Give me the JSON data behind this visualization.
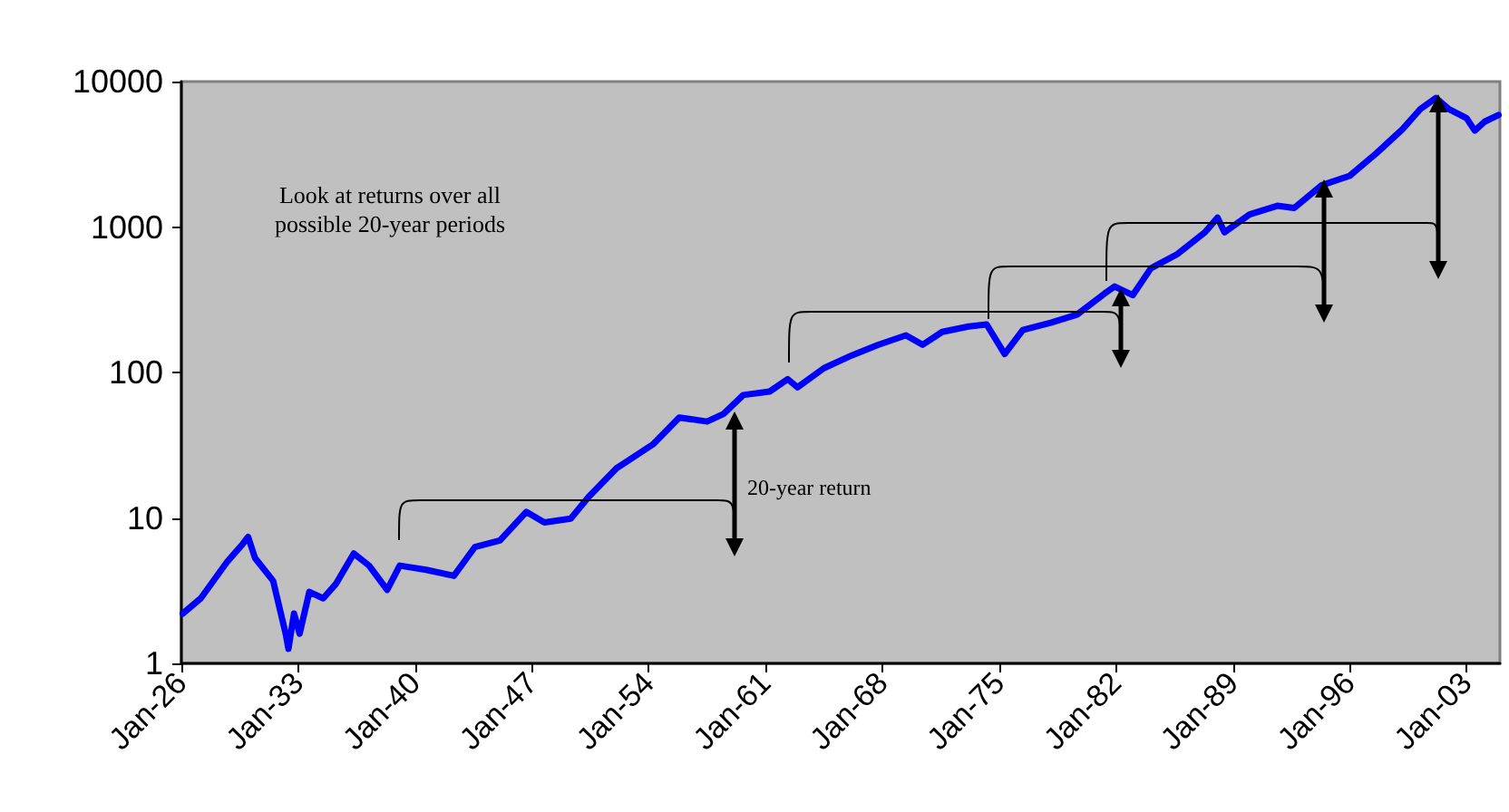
{
  "chart_data": {
    "type": "line",
    "x": [
      "1926-02",
      "1927-03",
      "1928-10",
      "1929-09",
      "1930-01",
      "1930-06",
      "1931-07",
      "1932-04",
      "1932-06",
      "1932-10",
      "1933-02",
      "1933-09",
      "1934-07",
      "1935-04",
      "1936-05",
      "1937-04",
      "1938-05",
      "1939-02",
      "1940-09",
      "1942-05",
      "1943-08",
      "1945-02",
      "1946-09",
      "1947-10",
      "1949-05",
      "1950-06",
      "1952-02",
      "1954-04",
      "1955-11",
      "1957-07",
      "1958-07",
      "1959-09",
      "1961-04",
      "1962-05",
      "1962-12",
      "1964-07",
      "1966-03",
      "1967-10",
      "1969-06",
      "1970-06",
      "1971-08",
      "1973-03",
      "1974-04",
      "1975-05",
      "1976-06",
      "1978-02",
      "1979-09",
      "1981-05",
      "1981-12",
      "1983-01",
      "1984-02",
      "1985-09",
      "1987-05",
      "1988-02",
      "1988-07",
      "1990-01",
      "1991-09",
      "1992-09",
      "1994-05",
      "1996-01",
      "1997-08",
      "1999-03",
      "2000-04",
      "2001-03",
      "2001-12",
      "2003-01",
      "2003-07",
      "2004-02",
      "2004-12"
    ],
    "series": [
      {
        "color": "#0000ff",
        "values": [
          2.2,
          2.8,
          5,
          6.6,
          7.4,
          5.3,
          3.7,
          1.6,
          1.26,
          2.2,
          1.6,
          3.1,
          2.8,
          3.5,
          5.7,
          4.7,
          3.2,
          4.7,
          4.4,
          4,
          6.3,
          7,
          11,
          9.3,
          9.9,
          14,
          22,
          32,
          49,
          46,
          52,
          70,
          74,
          90,
          79,
          107,
          131,
          155,
          180,
          155,
          190,
          207,
          214,
          134,
          196,
          220,
          250,
          350,
          390,
          340,
          520,
          650,
          920,
          1160,
          920,
          1220,
          1400,
          1350,
          1940,
          2250,
          3200,
          4700,
          6500,
          7700,
          6500,
          5600,
          4600,
          5300,
          5900
        ]
      }
    ],
    "xlim": [
      "1926-01",
      "2005-01"
    ],
    "xticks": [
      {
        "value": "1926-01",
        "label": "Jan-26"
      },
      {
        "value": "1933-01",
        "label": "Jan-33"
      },
      {
        "value": "1940-01",
        "label": "Jan-40"
      },
      {
        "value": "1947-01",
        "label": "Jan-47"
      },
      {
        "value": "1954-01",
        "label": "Jan-54"
      },
      {
        "value": "1961-01",
        "label": "Jan-61"
      },
      {
        "value": "1968-01",
        "label": "Jan-68"
      },
      {
        "value": "1975-01",
        "label": "Jan-75"
      },
      {
        "value": "1982-01",
        "label": "Jan-82"
      },
      {
        "value": "1989-01",
        "label": "Jan-89"
      },
      {
        "value": "1996-01",
        "label": "Jan-96"
      },
      {
        "value": "2003-01",
        "label": "Jan-03"
      }
    ],
    "ylim": [
      1,
      10000
    ],
    "yticks": [
      1,
      10,
      100,
      1000,
      10000
    ],
    "log": "y",
    "grid": false,
    "marker": "none",
    "line_style": "solid",
    "annotations": [
      "Look at returns over all possible 20-year periods",
      "20-year return"
    ]
  }
}
